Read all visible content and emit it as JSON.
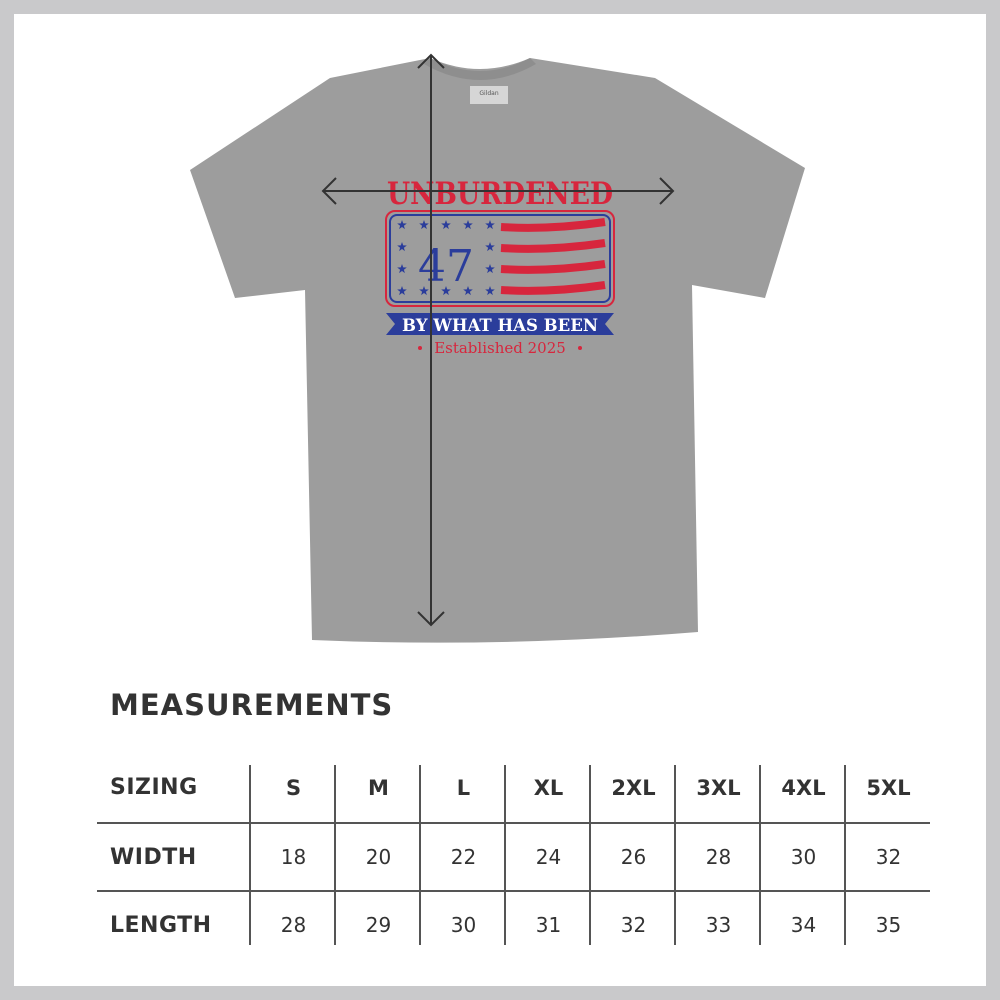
{
  "design": {
    "headline": "UNBURDENED",
    "number": "47",
    "banner": "BY WHAT HAS BEEN",
    "subline": "Established 2025",
    "label_brand": "Gildan",
    "colors": {
      "shirt": "#9d9d9d",
      "red": "#d7263d",
      "blue": "#2b3d9b",
      "frame": "#c9c9cb"
    }
  },
  "measurements": {
    "title": "MEASUREMENTS",
    "header_label": "SIZING",
    "sizes": [
      "S",
      "M",
      "L",
      "XL",
      "2XL",
      "3XL",
      "4XL",
      "5XL"
    ],
    "rows": [
      {
        "label": "WIDTH",
        "values": [
          "18",
          "20",
          "22",
          "24",
          "26",
          "28",
          "30",
          "32"
        ]
      },
      {
        "label": "LENGTH",
        "values": [
          "28",
          "29",
          "30",
          "31",
          "32",
          "33",
          "34",
          "35"
        ]
      }
    ]
  }
}
